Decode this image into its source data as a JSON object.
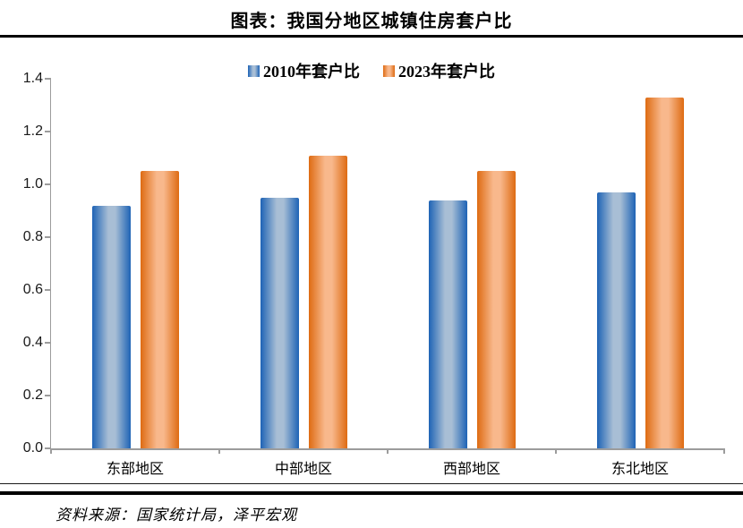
{
  "title": "图表：我国分地区城镇住房套户比",
  "footer": {
    "source": "资料来源：国家统计局，泽平宏观"
  },
  "colors": {
    "axis": "#9c9c9c",
    "rule": "#000000",
    "blue_edge": "#1e63b5",
    "blue_center": "#a8bed5",
    "orange_edge": "#de6b12",
    "orange_center": "#f8b88c"
  },
  "chart_data": {
    "type": "bar",
    "title": "图表：我国分地区城镇住房套户比",
    "categories": [
      "东部地区",
      "中部地区",
      "西部地区",
      "东北地区"
    ],
    "series": [
      {
        "name": "2010年套户比",
        "edge_color": "#1e63b5",
        "center_color": "#a8bed5",
        "values": [
          0.92,
          0.95,
          0.94,
          0.97
        ]
      },
      {
        "name": "2023年套户比",
        "edge_color": "#de6b12",
        "center_color": "#f8b88c",
        "values": [
          1.05,
          1.11,
          1.05,
          1.33
        ]
      }
    ],
    "xlabel": "",
    "ylabel": "",
    "ylim": [
      0.0,
      1.4
    ],
    "yticks": [
      "0.0",
      "0.2",
      "0.4",
      "0.6",
      "0.8",
      "1.0",
      "1.2",
      "1.4"
    ],
    "grid": false,
    "legend_position": "top-center",
    "source": "资料来源：国家统计局，泽平宏观"
  }
}
